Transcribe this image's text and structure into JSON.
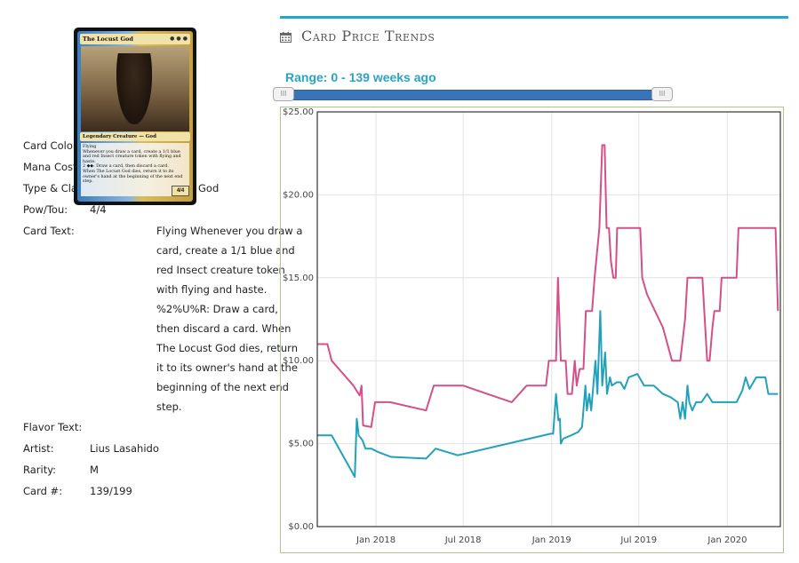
{
  "card_info": {
    "rows": [
      {
        "label": "Card Color:",
        "value": ""
      },
      {
        "label": "Mana Cost:",
        "value": ""
      },
      {
        "label": "Type & Class:",
        "value": "God"
      },
      {
        "label": "Pow/Tou:",
        "value": "4/4"
      }
    ],
    "card_text_label": "Card Text:",
    "card_text": "Flying Whenever you draw a card, create a 1/1 blue and red Insect creature token with flying and haste. %2%U%R: Draw a card, then discard a card. When The Locust God dies, return it to its owner's hand at the beginning of the next end step.",
    "rows2": [
      {
        "label": "Flavor Text:",
        "value": ""
      },
      {
        "label": "Artist:",
        "value": "Lius Lasahido"
      },
      {
        "label": "Rarity:",
        "value": "M"
      },
      {
        "label": "Card #:",
        "value": "139/199"
      }
    ]
  },
  "card_image": {
    "title": "The Locust God",
    "type_line": "Legendary Creature — God",
    "rules_text": "Flying\nWhenever you draw a card, create a 1/1 blue and red Insect creature token with flying and haste.\n2 ◆◆: Draw a card, then discard a card.\nWhen The Locust God dies, return it to its owner's hand at the beginning of the next end step.",
    "pt": "4/4"
  },
  "header": {
    "title": "Card Price Trends",
    "range_label": "Range: 0 - 139 weeks ago",
    "icon": "calendar-icon",
    "accent_color": "#22a9c6"
  },
  "slider": {
    "min_weeks_ago": 0,
    "max_weeks_ago": 139
  },
  "chart_data": {
    "type": "line",
    "title": "",
    "xlabel": "",
    "ylabel": "",
    "ylim": [
      0,
      25
    ],
    "xlim": [
      "2017-09-01",
      "2020-04-20"
    ],
    "y_ticks": [
      "$0.00",
      "$5.00",
      "$10.00",
      "$15.00",
      "$20.00",
      "$25.00"
    ],
    "x_ticks": [
      {
        "date": "2018-01-01",
        "label": "Jan 2018"
      },
      {
        "date": "2018-07-01",
        "label": "Jul 2018"
      },
      {
        "date": "2019-01-01",
        "label": "Jan 2019"
      },
      {
        "date": "2019-07-01",
        "label": "Jul 2019"
      },
      {
        "date": "2020-01-01",
        "label": "Jan 2020"
      }
    ],
    "grid": true,
    "series": [
      {
        "name": "",
        "color": "#d4508a",
        "points": [
          [
            "2017-09-01",
            11.0
          ],
          [
            "2017-09-22",
            11.0
          ],
          [
            "2017-10-01",
            10.0
          ],
          [
            "2017-11-15",
            8.5
          ],
          [
            "2017-11-28",
            7.9
          ],
          [
            "2017-12-02",
            8.5
          ],
          [
            "2017-12-05",
            6.1
          ],
          [
            "2017-12-22",
            6.0
          ],
          [
            "2017-12-30",
            7.5
          ],
          [
            "2018-01-30",
            7.5
          ],
          [
            "2018-04-15",
            7.0
          ],
          [
            "2018-05-01",
            8.5
          ],
          [
            "2018-07-01",
            8.5
          ],
          [
            "2018-08-20",
            8.0
          ],
          [
            "2018-10-10",
            7.5
          ],
          [
            "2018-11-10",
            8.5
          ],
          [
            "2018-12-20",
            8.5
          ],
          [
            "2018-12-26",
            10.0
          ],
          [
            "2019-01-10",
            10.0
          ],
          [
            "2019-01-14",
            15.0
          ],
          [
            "2019-01-20",
            10.0
          ],
          [
            "2019-01-30",
            10.0
          ],
          [
            "2019-02-03",
            8.0
          ],
          [
            "2019-02-12",
            8.0
          ],
          [
            "2019-02-18",
            10.0
          ],
          [
            "2019-02-22",
            8.5
          ],
          [
            "2019-02-28",
            9.5
          ],
          [
            "2019-03-08",
            9.5
          ],
          [
            "2019-03-13",
            13.0
          ],
          [
            "2019-03-26",
            13.0
          ],
          [
            "2019-03-31",
            15.0
          ],
          [
            "2019-04-10",
            18.0
          ],
          [
            "2019-04-16",
            23.0
          ],
          [
            "2019-04-21",
            23.0
          ],
          [
            "2019-04-25",
            18.0
          ],
          [
            "2019-04-30",
            18.0
          ],
          [
            "2019-05-04",
            16.0
          ],
          [
            "2019-05-09",
            15.0
          ],
          [
            "2019-05-14",
            15.0
          ],
          [
            "2019-05-17",
            18.0
          ],
          [
            "2019-06-20",
            18.0
          ],
          [
            "2019-07-04",
            18.0
          ],
          [
            "2019-07-08",
            15.0
          ],
          [
            "2019-07-18",
            14.0
          ],
          [
            "2019-08-20",
            12.0
          ],
          [
            "2019-09-08",
            10.0
          ],
          [
            "2019-09-25",
            10.0
          ],
          [
            "2019-10-05",
            12.5
          ],
          [
            "2019-10-10",
            15.0
          ],
          [
            "2019-11-10",
            15.0
          ],
          [
            "2019-11-16",
            12.0
          ],
          [
            "2019-11-20",
            10.0
          ],
          [
            "2019-11-25",
            10.0
          ],
          [
            "2019-12-01",
            12.0
          ],
          [
            "2019-12-05",
            13.0
          ],
          [
            "2019-12-16",
            13.0
          ],
          [
            "2019-12-20",
            15.0
          ],
          [
            "2020-01-20",
            15.0
          ],
          [
            "2020-01-24",
            18.0
          ],
          [
            "2020-04-10",
            18.0
          ],
          [
            "2020-04-15",
            13.0
          ]
        ]
      },
      {
        "name": "",
        "color": "#22a2ba",
        "points": [
          [
            "2017-09-01",
            5.5
          ],
          [
            "2017-10-01",
            5.5
          ],
          [
            "2017-10-20",
            4.5
          ],
          [
            "2017-11-18",
            3.0
          ],
          [
            "2017-11-22",
            6.5
          ],
          [
            "2017-11-26",
            5.5
          ],
          [
            "2017-12-04",
            5.2
          ],
          [
            "2017-12-10",
            4.7
          ],
          [
            "2017-12-22",
            4.7
          ],
          [
            "2018-01-05",
            4.5
          ],
          [
            "2018-02-01",
            4.2
          ],
          [
            "2018-04-15",
            4.1
          ],
          [
            "2018-05-05",
            4.7
          ],
          [
            "2018-06-20",
            4.3
          ],
          [
            "2018-12-30",
            5.6
          ],
          [
            "2019-01-04",
            5.6
          ],
          [
            "2019-01-10",
            8.0
          ],
          [
            "2019-01-15",
            6.4
          ],
          [
            "2019-01-18",
            6.5
          ],
          [
            "2019-01-20",
            5.0
          ],
          [
            "2019-01-25",
            5.3
          ],
          [
            "2019-02-10",
            5.5
          ],
          [
            "2019-02-25",
            5.7
          ],
          [
            "2019-03-05",
            6.0
          ],
          [
            "2019-03-12",
            8.5
          ],
          [
            "2019-03-15",
            7.0
          ],
          [
            "2019-03-20",
            8.0
          ],
          [
            "2019-03-24",
            7.0
          ],
          [
            "2019-04-02",
            10.0
          ],
          [
            "2019-04-06",
            8.0
          ],
          [
            "2019-04-12",
            13.0
          ],
          [
            "2019-04-16",
            8.5
          ],
          [
            "2019-04-22",
            10.5
          ],
          [
            "2019-04-26",
            8.0
          ],
          [
            "2019-05-02",
            9.0
          ],
          [
            "2019-05-06",
            8.5
          ],
          [
            "2019-05-16",
            8.7
          ],
          [
            "2019-05-24",
            8.7
          ],
          [
            "2019-06-01",
            8.3
          ],
          [
            "2019-06-10",
            9.0
          ],
          [
            "2019-06-28",
            9.2
          ],
          [
            "2019-07-12",
            8.5
          ],
          [
            "2019-08-01",
            8.5
          ],
          [
            "2019-08-20",
            8.0
          ],
          [
            "2019-09-05",
            7.8
          ],
          [
            "2019-09-20",
            7.5
          ],
          [
            "2019-09-25",
            6.5
          ],
          [
            "2019-09-30",
            7.5
          ],
          [
            "2019-10-05",
            6.5
          ],
          [
            "2019-10-10",
            8.5
          ],
          [
            "2019-10-14",
            7.5
          ],
          [
            "2019-10-20",
            7.0
          ],
          [
            "2019-10-28",
            7.5
          ],
          [
            "2019-11-08",
            7.5
          ],
          [
            "2019-11-20",
            8.0
          ],
          [
            "2019-12-01",
            7.5
          ],
          [
            "2019-12-20",
            7.5
          ],
          [
            "2020-01-20",
            7.5
          ],
          [
            "2020-02-01",
            8.2
          ],
          [
            "2020-02-08",
            9.0
          ],
          [
            "2020-02-16",
            8.3
          ],
          [
            "2020-03-01",
            9.0
          ],
          [
            "2020-03-20",
            9.0
          ],
          [
            "2020-03-26",
            8.0
          ],
          [
            "2020-04-15",
            8.0
          ]
        ]
      }
    ]
  }
}
